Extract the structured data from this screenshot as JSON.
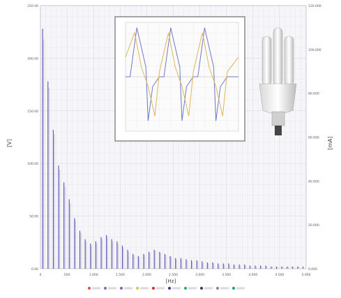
{
  "chart_data": {
    "type": "bar",
    "title": "",
    "xlabel": "[Hz]",
    "ylabel_left": "[V]",
    "ylabel_right": "[mA]",
    "xlim": [
      0,
      5000
    ],
    "ylim_left": [
      0,
      250
    ],
    "ylim_right": [
      0,
      120
    ],
    "x_ticks": [
      "0",
      "500",
      "1.000",
      "1.500",
      "2.000",
      "2.500",
      "3.000",
      "3.500",
      "4.000",
      "4.500",
      "5.000"
    ],
    "y_ticks_left": [
      "0.00",
      "50.00",
      "100.00",
      "150.00",
      "200.00",
      "250.00"
    ],
    "y_ticks_right": [
      "0.000",
      "20.000",
      "40.000",
      "60.000",
      "80.000",
      "100.000",
      "120.000"
    ],
    "grid": true,
    "harmonic_step_hz": 50,
    "series": [
      {
        "name": "",
        "color": "#5a4fb8",
        "values": [
          228,
          0,
          178,
          0,
          132,
          0,
          98,
          0,
          82,
          0,
          66,
          0,
          48,
          0,
          36,
          0,
          28,
          0,
          24,
          0,
          26,
          0,
          30,
          0,
          32,
          0,
          28,
          0,
          26,
          0,
          22,
          0,
          18,
          0,
          14,
          0,
          12,
          0,
          14,
          0,
          16,
          0,
          18,
          0,
          16,
          0,
          14,
          0,
          12,
          0,
          10,
          0,
          10,
          0,
          9,
          0,
          8,
          0,
          8,
          0,
          7,
          0,
          6,
          0,
          6,
          0,
          5,
          0,
          5,
          0,
          5,
          0,
          4,
          0,
          4,
          0,
          4,
          0,
          3,
          0,
          3,
          0,
          3,
          0,
          3,
          0,
          2,
          0,
          2,
          0,
          2,
          0,
          2,
          0,
          2,
          0,
          2,
          0,
          2,
          0
        ]
      },
      {
        "name": "",
        "color": "#c7c7cc",
        "values": [
          218,
          0,
          172,
          0,
          128,
          0,
          94,
          0,
          78,
          0,
          62,
          0,
          46,
          0,
          34,
          0,
          26,
          0,
          22,
          0,
          24,
          0,
          28,
          0,
          30,
          0,
          26,
          0,
          24,
          0,
          20,
          0,
          16,
          0,
          13,
          0,
          11,
          0,
          13,
          0,
          15,
          0,
          17,
          0,
          15,
          0,
          13,
          0,
          11,
          0,
          9,
          0,
          9,
          0,
          8,
          0,
          7,
          0,
          7,
          0,
          6,
          0,
          5,
          0,
          5,
          0,
          4,
          0,
          4,
          0,
          4,
          0,
          3,
          0,
          3,
          0,
          3,
          0,
          2,
          0,
          2,
          0,
          2,
          0,
          2,
          0,
          2,
          0,
          2,
          0,
          2,
          0,
          2,
          0,
          2,
          0,
          2,
          0
        ]
      }
    ],
    "inset": {
      "type": "line",
      "series": [
        {
          "color": "#6e78c8",
          "points": [
            [
              0,
              0
            ],
            [
              0.04,
              0
            ],
            [
              0.1,
              1
            ],
            [
              0.18,
              0.2
            ],
            [
              0.2,
              -0.9
            ],
            [
              0.24,
              -0.2
            ],
            [
              0.3,
              0
            ],
            [
              0.34,
              0
            ],
            [
              0.4,
              1
            ],
            [
              0.48,
              0.2
            ],
            [
              0.5,
              -0.9
            ],
            [
              0.54,
              -0.2
            ],
            [
              0.6,
              0
            ],
            [
              0.64,
              0
            ],
            [
              0.7,
              1
            ],
            [
              0.78,
              0.2
            ],
            [
              0.8,
              -0.9
            ],
            [
              0.84,
              -0.2
            ],
            [
              0.9,
              0
            ],
            [
              1,
              0
            ]
          ]
        },
        {
          "color": "#e0b45a",
          "points": [
            [
              0,
              0.4
            ],
            [
              0.08,
              0.9
            ],
            [
              0.14,
              0.2
            ],
            [
              0.2,
              -0.2
            ],
            [
              0.26,
              -0.8
            ],
            [
              0.3,
              0.1
            ],
            [
              0.38,
              0.9
            ],
            [
              0.44,
              0.2
            ],
            [
              0.5,
              -0.2
            ],
            [
              0.56,
              -0.8
            ],
            [
              0.6,
              0.1
            ],
            [
              0.68,
              0.9
            ],
            [
              0.74,
              0.2
            ],
            [
              0.8,
              -0.2
            ],
            [
              0.86,
              -0.8
            ],
            [
              0.9,
              0.1
            ],
            [
              1,
              0.4
            ]
          ]
        }
      ]
    }
  },
  "legend_swatches": [
    "#d6554a",
    "#7a6cc8",
    "#9b59b6",
    "#e0c05a",
    "#c0392b",
    "#333399",
    "#27ae60",
    "#2c3e50",
    "#7f8c8d",
    "#16a085"
  ]
}
